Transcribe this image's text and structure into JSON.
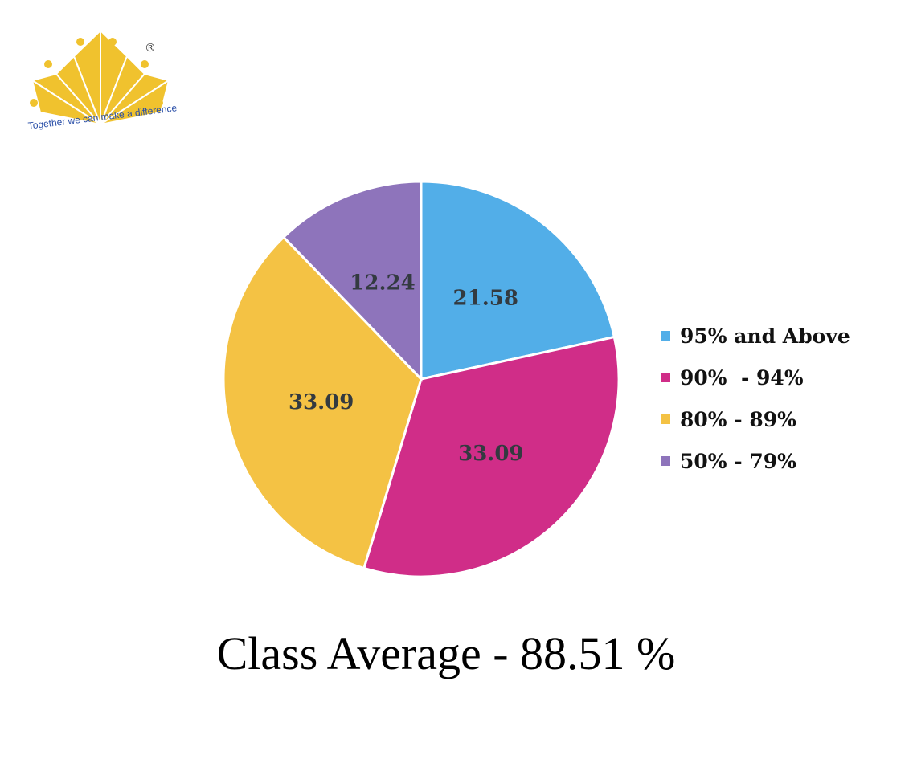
{
  "logo": {
    "tagline": "Together we can make a difference",
    "mark": "®",
    "color": "#f0c22e"
  },
  "chart_data": {
    "type": "pie",
    "categories": [
      "95% and Above",
      "90%  - 94%",
      "80% - 89%",
      "50% - 79%"
    ],
    "values": [
      21.58,
      33.09,
      33.09,
      12.24
    ],
    "value_labels": [
      "21.58",
      "33.09",
      "33.09",
      "12.24"
    ],
    "colors": [
      "#52aee8",
      "#d02d88",
      "#f4c244",
      "#8e74bb"
    ],
    "legend_position": "right",
    "start": "top, clockwise"
  },
  "footer": {
    "text": "Class Average - 88.51 %"
  }
}
